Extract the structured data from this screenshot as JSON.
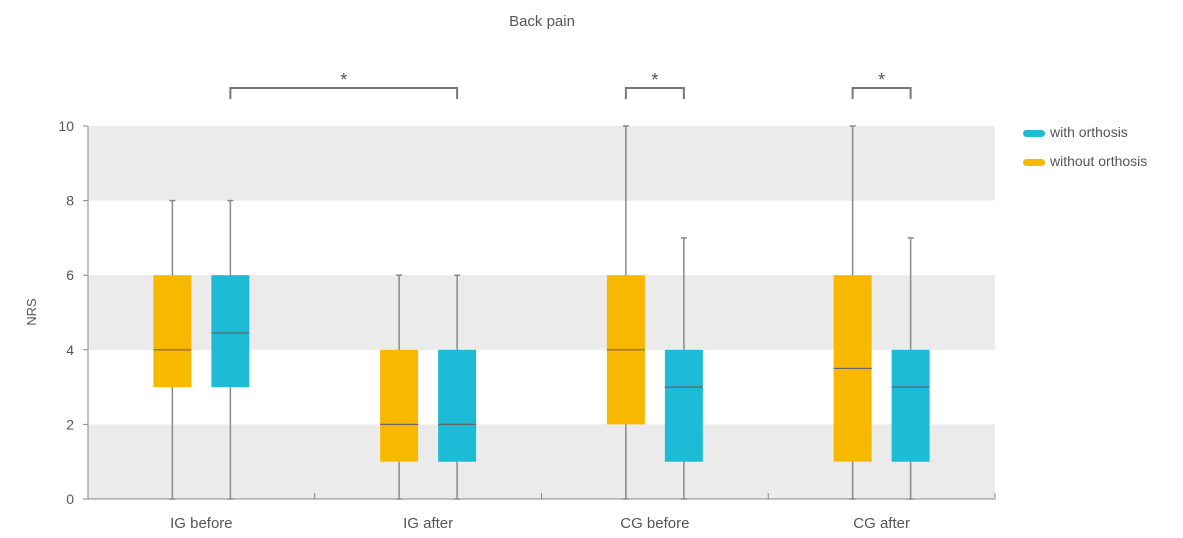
{
  "chart_data": {
    "type": "boxplot",
    "title": "Back pain",
    "ylabel": "NRS",
    "xlabel": "",
    "ylim": [
      0,
      10
    ],
    "yticks": [
      0,
      2,
      4,
      6,
      8,
      10
    ],
    "grid": "alternating horizontal bands",
    "legend_position": "top-right",
    "categories": [
      "IG before",
      "IG after",
      "CG before",
      "CG after"
    ],
    "series": [
      {
        "name": "without orthosis",
        "color": "#F9B800",
        "boxes": [
          {
            "min": 0,
            "q1": 3,
            "median": 4,
            "q3": 6,
            "max": 8
          },
          {
            "min": 0,
            "q1": 1,
            "median": 2,
            "q3": 4,
            "max": 6
          },
          {
            "min": 0,
            "q1": 2,
            "median": 4,
            "q3": 6,
            "max": 10
          },
          {
            "min": 0,
            "q1": 1,
            "median": 3.5,
            "q3": 6,
            "max": 10
          }
        ]
      },
      {
        "name": "with orthosis",
        "color": "#1EBBD7",
        "boxes": [
          {
            "min": 0,
            "q1": 3,
            "median": 4.45,
            "q3": 6,
            "max": 8
          },
          {
            "min": 0,
            "q1": 1,
            "median": 2,
            "q3": 4,
            "max": 6
          },
          {
            "min": 0,
            "q1": 1,
            "median": 3,
            "q3": 4,
            "max": 7
          },
          {
            "min": 0,
            "q1": 1,
            "median": 3,
            "q3": 4,
            "max": 7
          }
        ]
      }
    ],
    "legend_order": [
      "with orthosis",
      "without orthosis"
    ],
    "significance": [
      {
        "label": "*",
        "from": {
          "category": 0,
          "series": 1
        },
        "to": {
          "category": 1,
          "series": 1
        }
      },
      {
        "label": "*",
        "from": {
          "category": 2,
          "series": 0
        },
        "to": {
          "category": 2,
          "series": 1
        }
      },
      {
        "label": "*",
        "from": {
          "category": 3,
          "series": 0
        },
        "to": {
          "category": 3,
          "series": 1
        }
      }
    ]
  }
}
